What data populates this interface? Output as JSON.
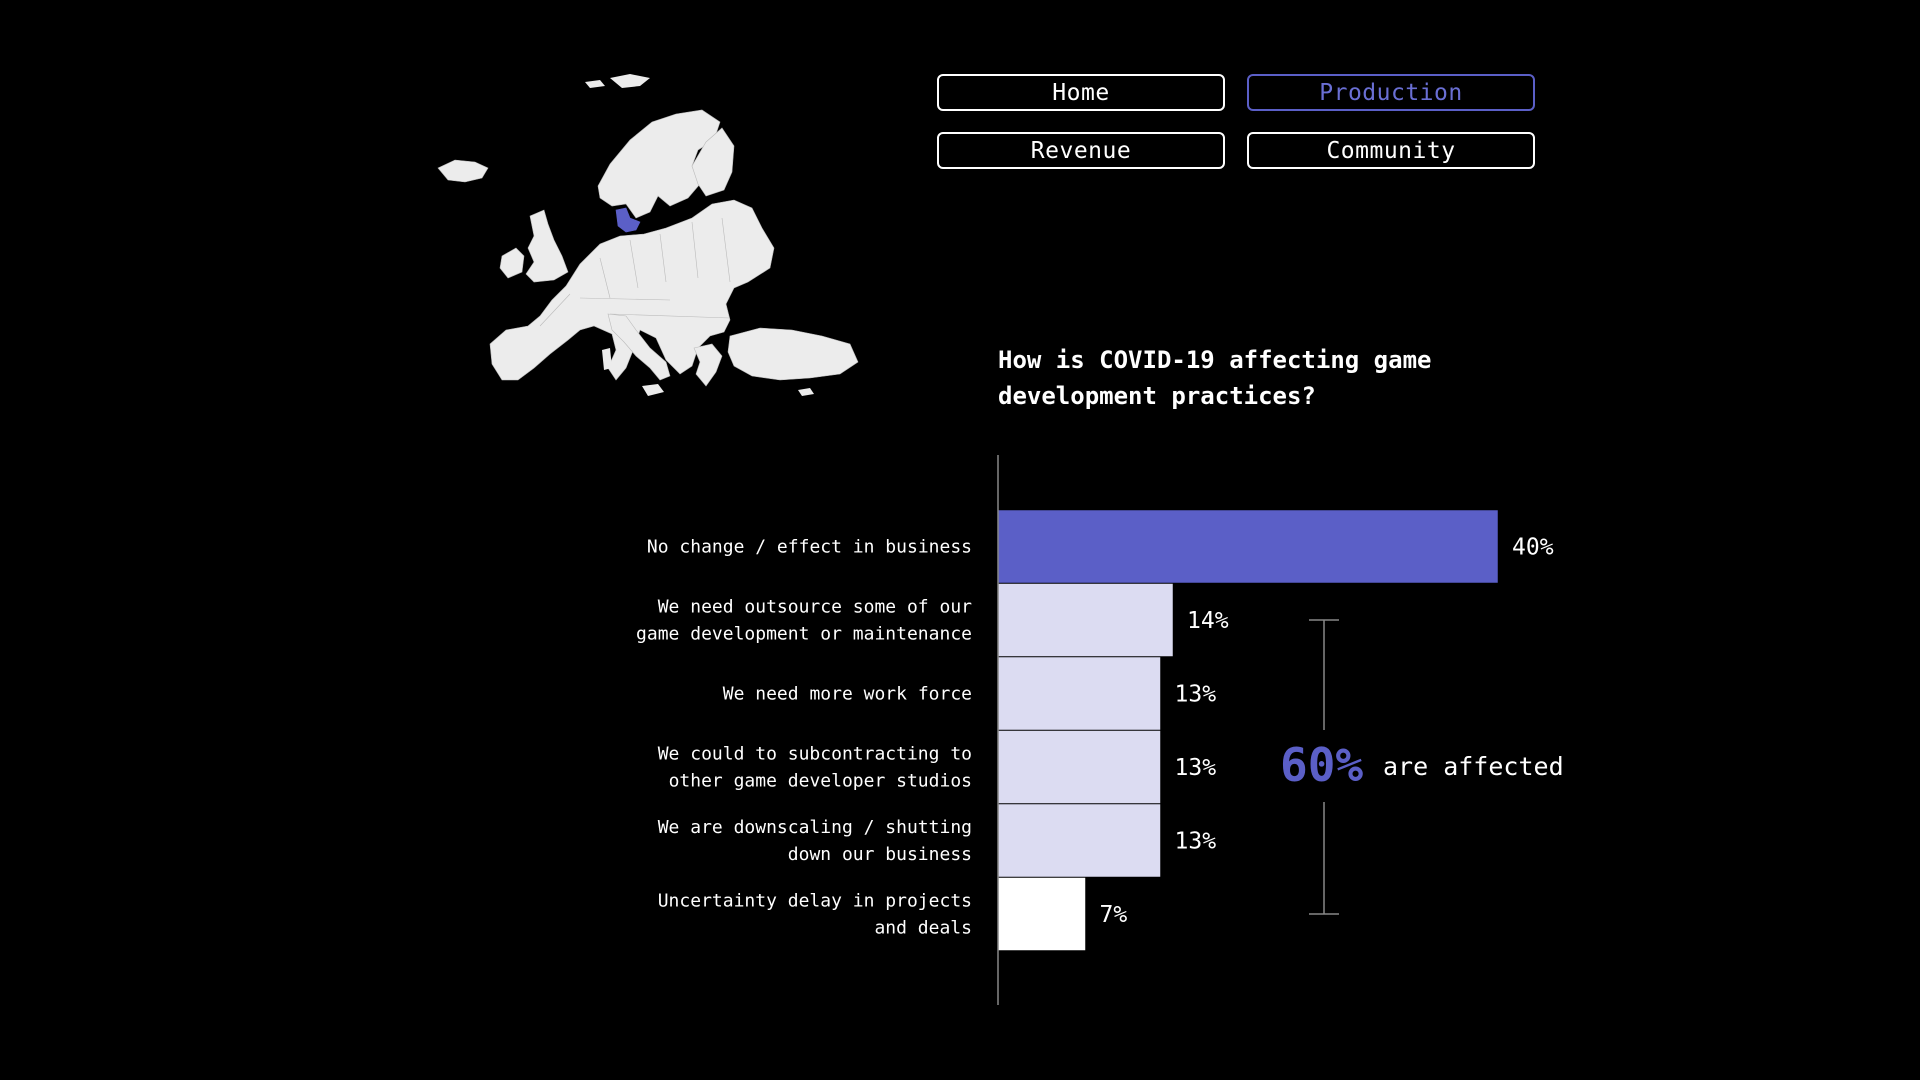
{
  "nav": {
    "items": [
      {
        "label": "Home",
        "active": false
      },
      {
        "label": "Production",
        "active": true
      },
      {
        "label": "Revenue",
        "active": false
      },
      {
        "label": "Community",
        "active": false
      }
    ]
  },
  "colors": {
    "accent": "#5b5fc7",
    "light_bar": "#dcdcf2",
    "white_bar": "#ffffff",
    "map_land": "#ececec"
  },
  "map": {
    "highlighted_country": "Denmark"
  },
  "summary": {
    "pct": "60%",
    "text": "are affected"
  },
  "chart_data": {
    "type": "bar",
    "orientation": "horizontal",
    "title": "How is COVID-19 affecting game development practices?",
    "categories": [
      [
        "No change / effect in business"
      ],
      [
        "We need outsource some of our",
        "game development or maintenance"
      ],
      [
        "We need more work force"
      ],
      [
        "We could to subcontracting to",
        "other game developer studios"
      ],
      [
        "We are downscaling / shutting",
        "down our business"
      ],
      [
        "Uncertainty delay in projects",
        "and deals"
      ]
    ],
    "values": [
      40,
      14,
      13,
      13,
      13,
      7
    ],
    "value_labels": [
      "40%",
      "14%",
      "13%",
      "13%",
      "13%",
      "7%"
    ],
    "bar_colors": [
      "#5b5fc7",
      "#dcdcf2",
      "#dcdcf2",
      "#dcdcf2",
      "#dcdcf2",
      "#ffffff"
    ],
    "xlim": [
      0,
      40
    ],
    "grid": false,
    "legend": "none"
  }
}
